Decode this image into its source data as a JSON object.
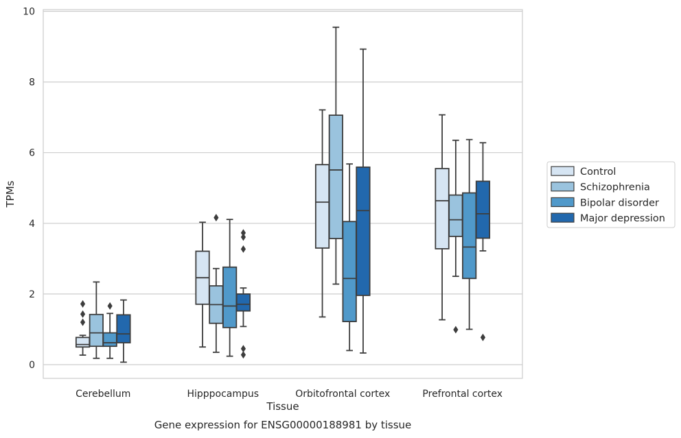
{
  "chart_data": {
    "type": "boxplot",
    "title": "",
    "xlabel": "Tissue",
    "ylabel": "TPMs",
    "caption": "Gene expression for ENSG00000188981 by tissue",
    "ylim": [
      -0.4,
      10.05
    ],
    "yticks": [
      0,
      2,
      4,
      6,
      8,
      10
    ],
    "grid": "horizontal",
    "legend_placement": "right",
    "categories": [
      "Cerebellum",
      "Hipppocampus",
      "Orbitofrontal cortex",
      "Prefrontal cortex"
    ],
    "series": [
      {
        "name": "Control",
        "color": "#d6e5f3",
        "boxes": [
          {
            "whislo": 0.27,
            "q1": 0.5,
            "med": 0.57,
            "q3": 0.77,
            "whishi": 0.83,
            "fliers": [
              1.2,
              1.43,
              1.72
            ]
          },
          {
            "whislo": 0.5,
            "q1": 1.71,
            "med": 2.46,
            "q3": 3.21,
            "whishi": 4.03,
            "fliers": []
          },
          {
            "whislo": 1.35,
            "q1": 3.3,
            "med": 4.6,
            "q3": 5.66,
            "whishi": 7.21,
            "fliers": []
          },
          {
            "whislo": 1.27,
            "q1": 3.28,
            "med": 4.64,
            "q3": 5.55,
            "whishi": 7.07,
            "fliers": []
          }
        ]
      },
      {
        "name": "Schizophrenia",
        "color": "#9ac3de",
        "boxes": [
          {
            "whislo": 0.18,
            "q1": 0.52,
            "med": 0.9,
            "q3": 1.42,
            "whishi": 2.34,
            "fliers": []
          },
          {
            "whislo": 0.35,
            "q1": 1.17,
            "med": 1.7,
            "q3": 2.23,
            "whishi": 2.72,
            "fliers": [
              4.16
            ]
          },
          {
            "whislo": 2.28,
            "q1": 3.57,
            "med": 5.51,
            "q3": 7.06,
            "whishi": 9.55,
            "fliers": []
          },
          {
            "whislo": 2.5,
            "q1": 3.63,
            "med": 4.1,
            "q3": 4.8,
            "whishi": 6.35,
            "fliers": [
              0.99
            ]
          }
        ]
      },
      {
        "name": "Bipolar disorder",
        "color": "#5099ca",
        "boxes": [
          {
            "whislo": 0.18,
            "q1": 0.52,
            "med": 0.62,
            "q3": 0.9,
            "whishi": 1.45,
            "fliers": [
              1.66
            ]
          },
          {
            "whislo": 0.24,
            "q1": 1.05,
            "med": 1.66,
            "q3": 2.76,
            "whishi": 4.11,
            "fliers": []
          },
          {
            "whislo": 0.4,
            "q1": 1.22,
            "med": 2.44,
            "q3": 4.05,
            "whishi": 5.68,
            "fliers": []
          },
          {
            "whislo": 1.0,
            "q1": 2.44,
            "med": 3.33,
            "q3": 4.86,
            "whishi": 6.37,
            "fliers": []
          }
        ]
      },
      {
        "name": "Major depression",
        "color": "#2268ad",
        "boxes": [
          {
            "whislo": 0.07,
            "q1": 0.62,
            "med": 0.87,
            "q3": 1.41,
            "whishi": 1.83,
            "fliers": []
          },
          {
            "whislo": 1.08,
            "q1": 1.52,
            "med": 1.71,
            "q3": 2.0,
            "whishi": 2.17,
            "fliers": [
              0.28,
              0.45,
              3.27,
              3.61,
              3.73
            ]
          },
          {
            "whislo": 0.33,
            "q1": 1.96,
            "med": 4.36,
            "q3": 5.59,
            "whishi": 8.93,
            "fliers": []
          },
          {
            "whislo": 3.22,
            "q1": 3.58,
            "med": 4.27,
            "q3": 5.19,
            "whishi": 6.28,
            "fliers": [
              0.77
            ]
          }
        ]
      }
    ]
  }
}
